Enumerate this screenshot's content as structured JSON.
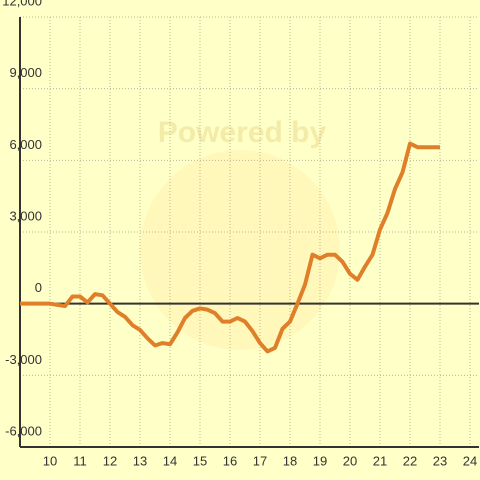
{
  "chart_data": {
    "type": "line",
    "watermark": "Powered by",
    "x": [
      9,
      9.25,
      9.5,
      9.75,
      10,
      10.25,
      10.5,
      10.75,
      11,
      11.25,
      11.5,
      11.75,
      12,
      12.25,
      12.5,
      12.75,
      13,
      13.25,
      13.5,
      13.75,
      14,
      14.25,
      14.5,
      14.75,
      15,
      15.25,
      15.5,
      15.75,
      16,
      16.25,
      16.5,
      16.75,
      17,
      17.25,
      17.5,
      17.75,
      18,
      18.25,
      18.5,
      18.75,
      19,
      19.25,
      19.5,
      19.75,
      20,
      20.25,
      20.5,
      20.75,
      21,
      21.25,
      21.5,
      21.75,
      22,
      22.25,
      22.5,
      22.75,
      23
    ],
    "series": [
      {
        "color": "#e07f2a",
        "values": [
          0,
          0,
          0,
          0,
          0,
          -50,
          -100,
          300,
          300,
          50,
          400,
          350,
          0,
          -350,
          -550,
          -900,
          -1100,
          -1450,
          -1750,
          -1650,
          -1700,
          -1200,
          -600,
          -300,
          -200,
          -250,
          -400,
          -750,
          -750,
          -600,
          -750,
          -1150,
          -1650,
          -2000,
          -1850,
          -1050,
          -750,
          0,
          800,
          2050,
          1900,
          2050,
          2050,
          1750,
          1250,
          1000,
          1550,
          2050,
          3100,
          3800,
          4800,
          5500,
          6700,
          6550,
          6550,
          6550,
          6550
        ]
      }
    ],
    "xlim": [
      9,
      24.3
    ],
    "xticks": [
      10,
      11,
      12,
      13,
      14,
      15,
      16,
      17,
      18,
      19,
      20,
      21,
      22,
      23,
      24
    ],
    "ylim": [
      -6000,
      12000
    ],
    "yticks": [
      {
        "value": -6000,
        "label": "-6,000"
      },
      {
        "value": -3000,
        "label": "-3,000"
      },
      0,
      {
        "value": 3000,
        "label": "3,000"
      },
      {
        "value": 6000,
        "label": "6,000"
      },
      {
        "value": 9000,
        "label": "9,000"
      },
      {
        "value": 12000,
        "label": "12,000"
      }
    ],
    "grid": true
  }
}
